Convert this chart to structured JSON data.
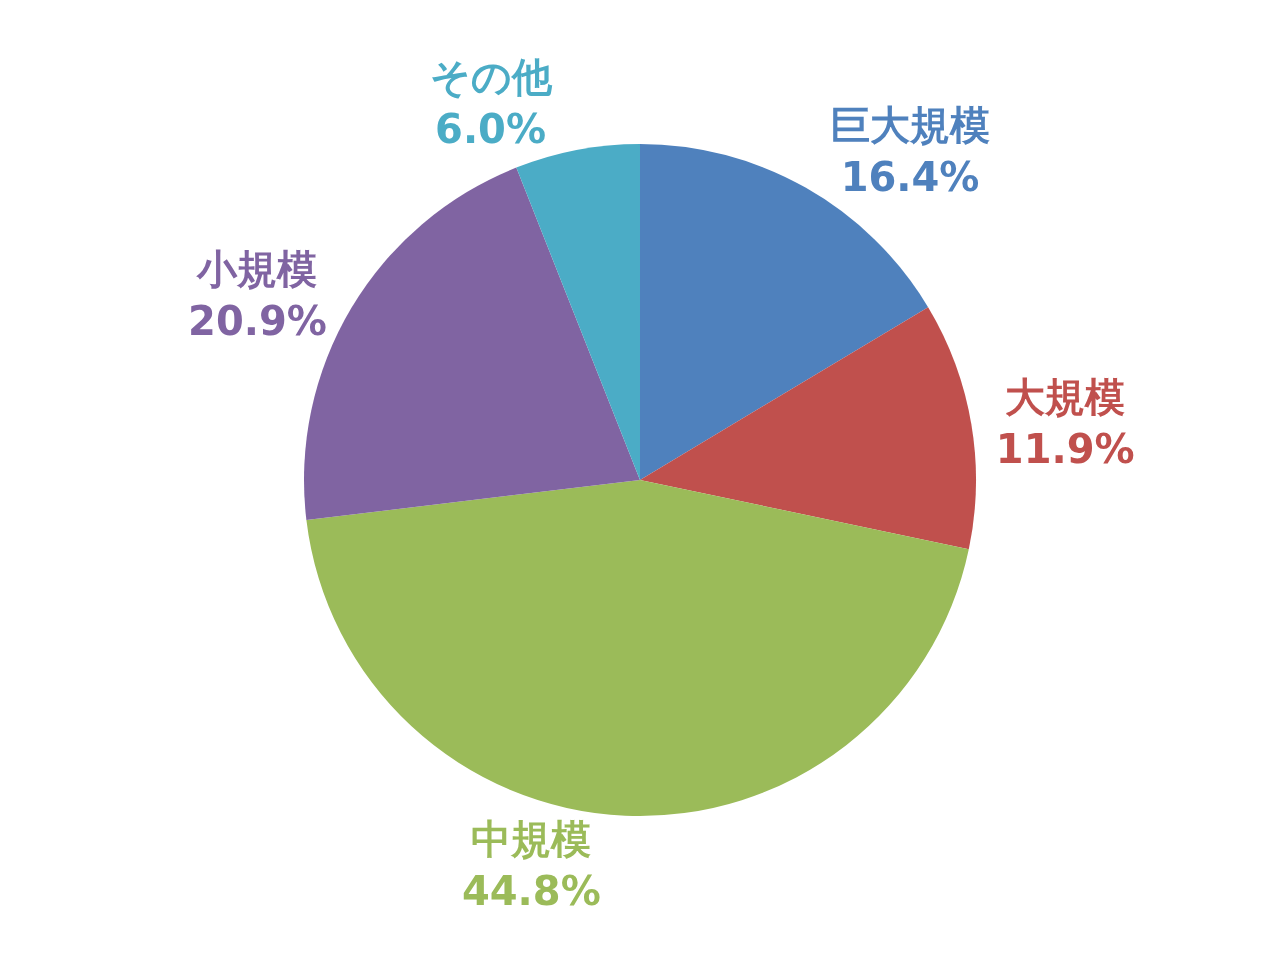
{
  "chart_data": {
    "type": "pie",
    "categories": [
      "巨大規模",
      "大規模",
      "中規模",
      "小規模",
      "その他"
    ],
    "values": [
      16.4,
      11.9,
      44.8,
      20.9,
      6.0
    ],
    "value_labels": [
      "16.4%",
      "11.9%",
      "44.8%",
      "20.9%",
      "6.0%"
    ],
    "colors": [
      "#4f81bd",
      "#c0504d",
      "#9bbb59",
      "#8064a2",
      "#4bacc6"
    ],
    "legend": false
  }
}
